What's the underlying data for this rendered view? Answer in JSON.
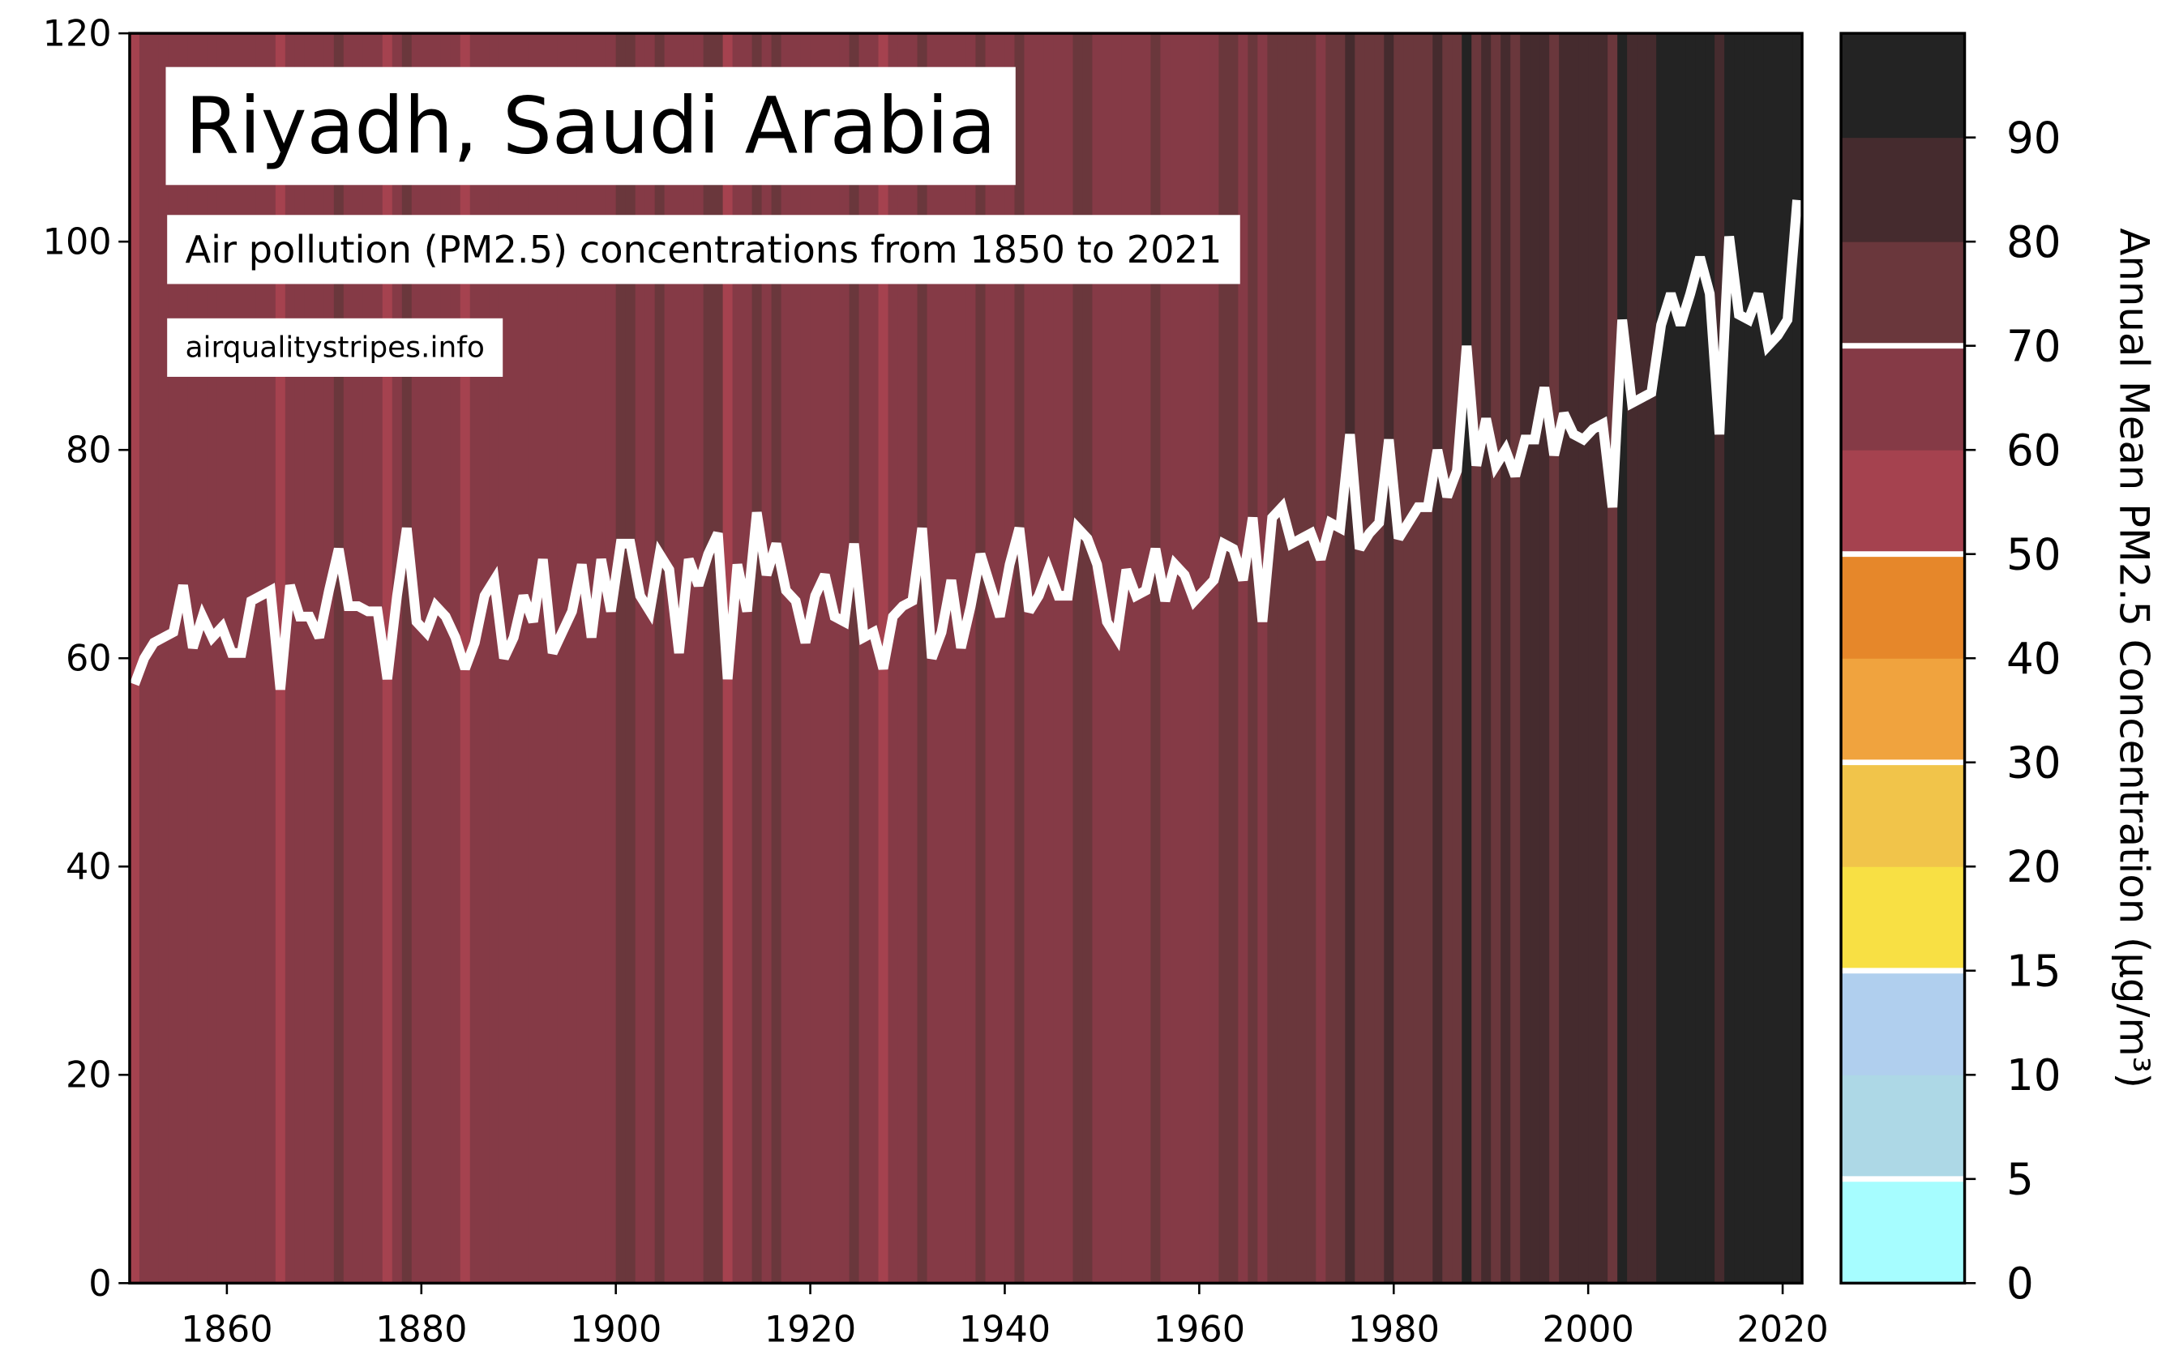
{
  "chart_data": {
    "type": "line",
    "title": "Riyadh, Saudi Arabia",
    "subtitle": "Air pollution (PM2.5) concentrations from 1850 to 2021",
    "source": "airqualitystripes.info",
    "x": [
      1850,
      1851,
      1852,
      1853,
      1854,
      1855,
      1856,
      1857,
      1858,
      1859,
      1860,
      1861,
      1862,
      1863,
      1864,
      1865,
      1866,
      1867,
      1868,
      1869,
      1870,
      1871,
      1872,
      1873,
      1874,
      1875,
      1876,
      1877,
      1878,
      1879,
      1880,
      1881,
      1882,
      1883,
      1884,
      1885,
      1886,
      1887,
      1888,
      1889,
      1890,
      1891,
      1892,
      1893,
      1894,
      1895,
      1896,
      1897,
      1898,
      1899,
      1900,
      1901,
      1902,
      1903,
      1904,
      1905,
      1906,
      1907,
      1908,
      1909,
      1910,
      1911,
      1912,
      1913,
      1914,
      1915,
      1916,
      1917,
      1918,
      1919,
      1920,
      1921,
      1922,
      1923,
      1924,
      1925,
      1926,
      1927,
      1928,
      1929,
      1930,
      1931,
      1932,
      1933,
      1934,
      1935,
      1936,
      1937,
      1938,
      1939,
      1940,
      1941,
      1942,
      1943,
      1944,
      1945,
      1946,
      1947,
      1948,
      1949,
      1950,
      1951,
      1952,
      1953,
      1954,
      1955,
      1956,
      1957,
      1958,
      1959,
      1960,
      1961,
      1962,
      1963,
      1964,
      1965,
      1966,
      1967,
      1968,
      1969,
      1970,
      1971,
      1972,
      1973,
      1974,
      1975,
      1976,
      1977,
      1978,
      1979,
      1980,
      1981,
      1982,
      1983,
      1984,
      1985,
      1986,
      1987,
      1988,
      1989,
      1990,
      1991,
      1992,
      1993,
      1994,
      1995,
      1996,
      1997,
      1998,
      1999,
      2000,
      2001,
      2002,
      2003,
      2004,
      2005,
      2006,
      2007,
      2008,
      2009,
      2010,
      2011,
      2012,
      2013,
      2014,
      2015,
      2016,
      2017,
      2018,
      2019,
      2020,
      2021
    ],
    "series": [
      {
        "color": "#ffffff",
        "values": [
          57.5,
          60,
          61.5,
          62,
          62.5,
          67,
          61,
          64,
          62,
          63,
          60.5,
          60.5,
          65.5,
          66,
          66.5,
          57,
          67,
          64,
          64,
          62,
          66.5,
          70.5,
          65,
          65,
          64.5,
          64.5,
          58,
          66,
          72.5,
          63.5,
          62.5,
          65,
          64,
          62,
          59,
          61.5,
          66,
          67.5,
          60,
          62,
          66,
          63.5,
          69.5,
          60.5,
          62.5,
          64.5,
          69,
          62,
          69.5,
          64.5,
          71,
          71,
          66,
          64.5,
          70,
          68.5,
          60.5,
          69.5,
          67,
          70,
          72,
          58,
          69,
          64.5,
          74,
          68,
          71,
          66.5,
          65.5,
          61.5,
          66,
          68,
          64,
          63.5,
          71,
          62,
          62.5,
          59,
          64,
          65,
          65.5,
          72.5,
          60,
          62.5,
          67.5,
          61,
          65,
          70,
          67,
          64,
          69,
          72.5,
          64.5,
          66,
          68.5,
          66,
          66,
          72.5,
          71.5,
          69,
          63.5,
          62,
          68.5,
          66,
          66.5,
          70.5,
          65.5,
          69,
          68,
          65.5,
          66.5,
          67.5,
          71,
          70.5,
          67.5,
          73.5,
          63.5,
          73.5,
          74.5,
          71,
          71.5,
          72,
          69.5,
          73,
          72.5,
          81.5,
          70.5,
          72,
          73,
          81,
          71.5,
          73,
          74.5,
          74.5,
          80,
          75.5,
          78,
          90,
          78.5,
          83,
          78.5,
          80,
          77.5,
          81,
          81,
          86,
          79.5,
          83.5,
          81.5,
          81,
          82,
          82.5,
          74.5,
          92.5,
          84.5,
          85,
          85.5,
          92,
          95,
          92,
          95,
          98.5,
          95,
          81.5,
          100.5,
          93,
          92.5,
          95,
          90,
          91,
          92.5,
          104
        ]
      }
    ],
    "xlim": [
      1850,
      2022
    ],
    "ylim": [
      0,
      120
    ],
    "xticks": [
      1860,
      1880,
      1900,
      1920,
      1940,
      1960,
      1980,
      2000,
      2020
    ],
    "yticks": [
      0,
      20,
      40,
      60,
      80,
      100,
      120
    ],
    "colorbar": {
      "label": "Annual Mean PM2.5 Concentration (µg/m³)",
      "bounds": [
        0,
        5,
        10,
        15,
        20,
        30,
        40,
        50,
        60,
        70,
        80,
        90
      ],
      "colors": [
        "#a6fdff",
        "#add8e6",
        "#b0cfee",
        "#f8e044",
        "#f1c44a",
        "#f0a33e",
        "#e6872a",
        "#a5424f",
        "#853a46",
        "#6a373c",
        "#452b2e",
        "#232323"
      ],
      "guide_lines": [
        5,
        15,
        30,
        50,
        70
      ]
    }
  }
}
